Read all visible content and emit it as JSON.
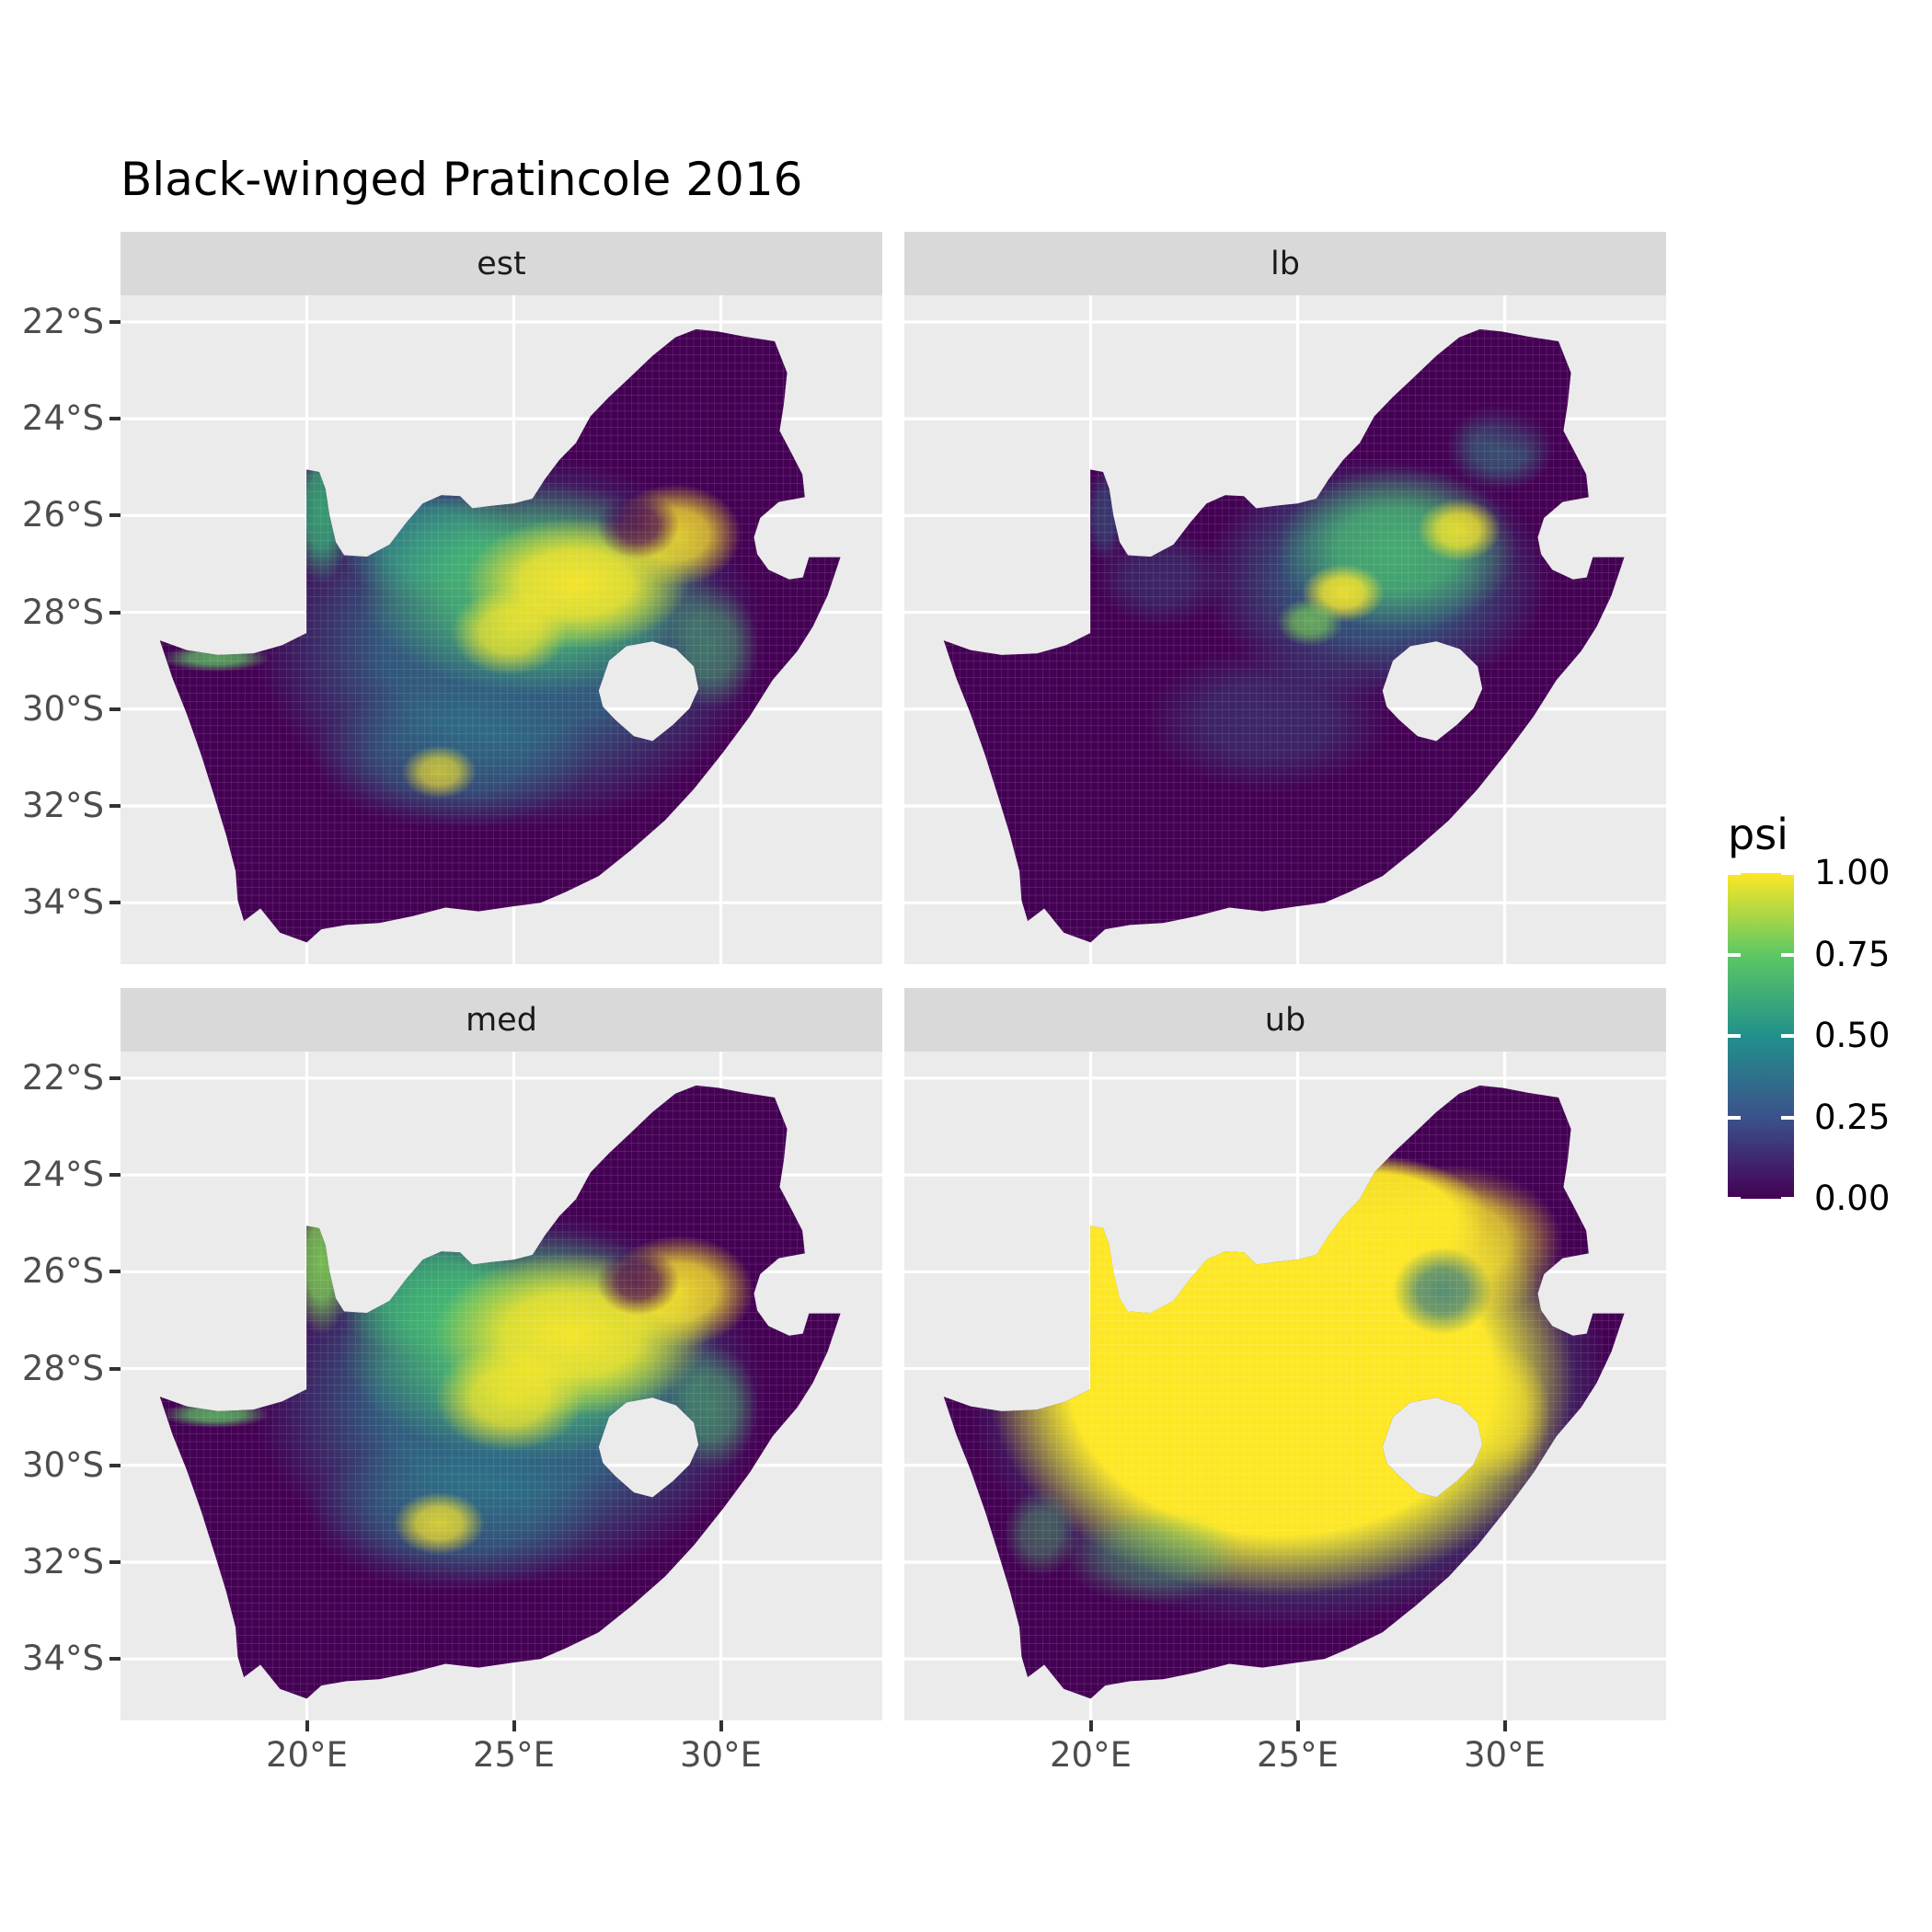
{
  "title": "Black-winged Pratincole 2016",
  "colors": {
    "panel_background": "#ebebeb",
    "strip_background": "#d9d9d9",
    "grid_line": "#ffffff",
    "axis_text": "#4d4d4d",
    "tick_mark": "#333333",
    "title_text": "#000000",
    "na_country_fill": "#440154",
    "figure_background": "#ffffff"
  },
  "chart_data": {
    "type": "heatmap",
    "title": "Black-winged Pratincole 2016",
    "subtitle": "",
    "region": "South Africa occupancy probability raster, 4 facets",
    "facet_variable_values": [
      "est",
      "lb",
      "med",
      "ub"
    ],
    "x_axis": {
      "label": "",
      "tick_labels": [
        "20°E",
        "25°E",
        "30°E"
      ],
      "tick_values": [
        20,
        25,
        30
      ],
      "range_lon": [
        15.5,
        33.9
      ]
    },
    "y_axis": {
      "label": "",
      "tick_labels": [
        "22°S",
        "24°S",
        "26°S",
        "28°S",
        "30°S",
        "32°S",
        "34°S"
      ],
      "tick_values": [
        22,
        24,
        26,
        28,
        30,
        32,
        34
      ],
      "range_lat_south": [
        21.45,
        35.27
      ]
    },
    "grid": {
      "x": [
        20,
        25,
        30
      ],
      "y": [
        22,
        24,
        26,
        28,
        30,
        32,
        34
      ],
      "grid_on": true
    },
    "legend": {
      "title": "psi",
      "position": "right",
      "tick_labels": [
        "1.00",
        "0.75",
        "0.50",
        "0.25",
        "0.00"
      ],
      "breaks": [
        1.0,
        0.75,
        0.5,
        0.25,
        0.0
      ],
      "palette": "viridis",
      "stops": {
        "0.00": "#440154",
        "0.25": "#3b528b",
        "0.50": "#21908c",
        "0.75": "#5dc863",
        "1.00": "#fde725"
      }
    },
    "geo": {
      "lon0": 15.5,
      "lonW": 18.4,
      "lat0": 21.45,
      "latH": 13.82
    },
    "facets": [
      {
        "label": "est",
        "summary": "Moderate-high psi (0.5-1.0) over central interior (Free State / North West / Northern Cape core); near 0 along west and south coasts and far northeast Limpopo.",
        "blobs": [
          [
            24.9,
            28.6,
            6.2,
            3.9,
            "#2a7f8e",
            0.8,
            0
          ],
          [
            22.9,
            26.5,
            2.2,
            1.3,
            "#2e9d8f",
            0.75,
            0
          ],
          [
            20.35,
            25.9,
            0.75,
            1.5,
            "#35b779",
            0.85,
            0
          ],
          [
            17.8,
            28.95,
            1.3,
            0.28,
            "#5ec962",
            0.8,
            0
          ],
          [
            25.6,
            27.5,
            4.3,
            2.2,
            "#4ac16d",
            0.85,
            0
          ],
          [
            26.5,
            27.4,
            2.7,
            1.35,
            "#fde725",
            0.95,
            0
          ],
          [
            28.9,
            26.4,
            1.6,
            1.05,
            "#fde725",
            0.85,
            0
          ],
          [
            24.9,
            28.4,
            1.4,
            0.9,
            "#fde725",
            0.8,
            0
          ],
          [
            23.5,
            31.0,
            3.4,
            1.5,
            "#2a7f8e",
            0.5,
            0
          ],
          [
            23.2,
            31.3,
            0.9,
            0.55,
            "#fde725",
            0.7,
            0
          ],
          [
            29.8,
            28.7,
            1.1,
            1.3,
            "#4ac16d",
            0.5,
            0
          ],
          [
            28.0,
            26.2,
            1.0,
            0.7,
            "#440154",
            0.8,
            0
          ],
          [
            30.9,
            23.3,
            2.6,
            1.8,
            "#440154",
            0.85,
            0
          ]
        ]
      },
      {
        "label": "lb",
        "summary": "Lower bound: mostly near 0 (dark purple); moderate psi (0.4-0.8) band across the northern interior with small yellow patches near 26-29E, 26-28S.",
        "blobs": [
          [
            26.9,
            27.3,
            4.2,
            2.5,
            "#2a7f8e",
            0.7,
            0
          ],
          [
            27.4,
            26.7,
            2.9,
            1.7,
            "#4ac16d",
            0.8,
            0
          ],
          [
            26.1,
            27.6,
            1.0,
            0.6,
            "#fde725",
            0.9,
            0
          ],
          [
            28.9,
            26.3,
            1.0,
            0.65,
            "#fde725",
            0.85,
            0
          ],
          [
            25.3,
            28.2,
            0.8,
            0.5,
            "#7ad151",
            0.7,
            0
          ],
          [
            24.3,
            30.2,
            3.0,
            1.5,
            "#2a7f8e",
            0.32,
            0
          ],
          [
            21.7,
            27.3,
            1.6,
            1.0,
            "#2a7f8e",
            0.3,
            0
          ],
          [
            20.35,
            26.0,
            0.5,
            1.0,
            "#2a7f8e",
            0.45,
            0
          ],
          [
            29.9,
            24.6,
            1.3,
            0.9,
            "#2e9d8f",
            0.5,
            0
          ],
          [
            30.9,
            23.2,
            2.4,
            1.6,
            "#440154",
            0.8,
            0
          ]
        ]
      },
      {
        "label": "med",
        "summary": "Median: like est but brighter; broad yellow (psi near 1) core across the central plateau, dark coasts and far northeast.",
        "blobs": [
          [
            24.9,
            28.6,
            6.2,
            3.9,
            "#2a7f8e",
            0.85,
            0
          ],
          [
            22.9,
            26.4,
            2.3,
            1.4,
            "#35b779",
            0.8,
            0
          ],
          [
            20.35,
            25.8,
            0.75,
            1.5,
            "#7ad151",
            0.9,
            0
          ],
          [
            17.8,
            28.95,
            1.3,
            0.28,
            "#5ec962",
            0.8,
            0
          ],
          [
            25.4,
            27.5,
            4.6,
            2.4,
            "#4ac16d",
            0.9,
            0
          ],
          [
            26.4,
            27.3,
            3.3,
            1.7,
            "#fde725",
            0.95,
            0
          ],
          [
            29.0,
            26.4,
            1.8,
            1.15,
            "#fde725",
            0.9,
            0
          ],
          [
            24.9,
            28.6,
            1.8,
            1.1,
            "#fde725",
            0.85,
            0
          ],
          [
            23.6,
            31.0,
            3.6,
            1.6,
            "#2a7f8e",
            0.55,
            0
          ],
          [
            23.2,
            31.2,
            1.1,
            0.65,
            "#fde725",
            0.8,
            0
          ],
          [
            29.8,
            28.8,
            1.1,
            1.3,
            "#4ac16d",
            0.55,
            0
          ],
          [
            28.0,
            26.2,
            1.0,
            0.7,
            "#440154",
            0.8,
            0
          ],
          [
            30.9,
            23.3,
            2.6,
            1.8,
            "#440154",
            0.85,
            0
          ]
        ]
      },
      {
        "label": "ub",
        "summary": "Upper bound: psi near 1 (yellow) over almost the whole interior plateau; near 0 only on west, south and east coastal belts and part of far northeast.",
        "blobs": [
          [
            24.8,
            28.4,
            7.8,
            5.0,
            "#2a9d8f",
            0.9,
            0
          ],
          [
            24.6,
            28.2,
            7.1,
            4.5,
            "#fde725",
            1,
            1
          ],
          [
            20.35,
            25.8,
            0.8,
            1.6,
            "#fde725",
            1,
            1
          ],
          [
            22.4,
            26.3,
            2.4,
            1.3,
            "#fde725",
            1,
            1
          ],
          [
            26.8,
            24.9,
            2.8,
            1.3,
            "#fde725",
            0.95,
            1
          ],
          [
            28.8,
            25.4,
            2.6,
            1.6,
            "#fde725",
            0.9,
            0
          ],
          [
            29.9,
            28.9,
            1.2,
            1.4,
            "#fde725",
            0.7,
            0
          ],
          [
            21.5,
            31.9,
            2.2,
            1.0,
            "#4ac16d",
            0.4,
            0
          ],
          [
            18.8,
            31.4,
            0.9,
            0.9,
            "#4ac16d",
            0.45,
            0
          ],
          [
            28.5,
            26.4,
            1.2,
            0.9,
            "#1f6e8c",
            0.75,
            0
          ],
          [
            31.0,
            23.1,
            2.6,
            1.7,
            "#440154",
            0.9,
            0
          ]
        ]
      }
    ]
  },
  "map": {
    "country": "South Africa",
    "holes": [
      "Lesotho",
      "Eswatini notch"
    ],
    "outline": [
      [
        16.45,
        28.58
      ],
      [
        17.1,
        28.78
      ],
      [
        17.85,
        28.88
      ],
      [
        18.7,
        28.85
      ],
      [
        19.4,
        28.68
      ],
      [
        19.99,
        28.43
      ],
      [
        19.99,
        25.05
      ],
      [
        20.3,
        25.1
      ],
      [
        20.45,
        25.45
      ],
      [
        20.55,
        26.0
      ],
      [
        20.7,
        26.55
      ],
      [
        20.9,
        26.82
      ],
      [
        21.45,
        26.85
      ],
      [
        22.0,
        26.6
      ],
      [
        22.4,
        26.15
      ],
      [
        22.8,
        25.75
      ],
      [
        23.25,
        25.58
      ],
      [
        23.7,
        25.6
      ],
      [
        24.0,
        25.85
      ],
      [
        24.45,
        25.8
      ],
      [
        25.0,
        25.75
      ],
      [
        25.45,
        25.65
      ],
      [
        25.75,
        25.25
      ],
      [
        26.1,
        24.85
      ],
      [
        26.5,
        24.5
      ],
      [
        26.85,
        23.95
      ],
      [
        27.3,
        23.55
      ],
      [
        27.8,
        23.15
      ],
      [
        28.35,
        22.7
      ],
      [
        28.9,
        22.32
      ],
      [
        29.4,
        22.15
      ],
      [
        29.95,
        22.2
      ],
      [
        30.55,
        22.3
      ],
      [
        31.3,
        22.4
      ],
      [
        31.6,
        23.05
      ],
      [
        31.52,
        23.7
      ],
      [
        31.42,
        24.25
      ],
      [
        31.7,
        24.7
      ],
      [
        31.97,
        25.15
      ],
      [
        32.03,
        25.62
      ],
      [
        31.4,
        25.72
      ],
      [
        30.95,
        26.05
      ],
      [
        30.8,
        26.45
      ],
      [
        30.88,
        26.8
      ],
      [
        31.15,
        27.12
      ],
      [
        31.65,
        27.32
      ],
      [
        31.98,
        27.28
      ],
      [
        32.13,
        26.86
      ],
      [
        32.89,
        26.86
      ],
      [
        32.58,
        27.65
      ],
      [
        32.22,
        28.3
      ],
      [
        31.85,
        28.8
      ],
      [
        31.25,
        29.4
      ],
      [
        30.7,
        30.15
      ],
      [
        30.05,
        30.9
      ],
      [
        29.35,
        31.65
      ],
      [
        28.65,
        32.3
      ],
      [
        27.85,
        32.9
      ],
      [
        27.05,
        33.45
      ],
      [
        26.25,
        33.78
      ],
      [
        25.65,
        34.0
      ],
      [
        24.95,
        34.08
      ],
      [
        24.15,
        34.18
      ],
      [
        23.35,
        34.1
      ],
      [
        22.55,
        34.28
      ],
      [
        21.75,
        34.42
      ],
      [
        20.95,
        34.46
      ],
      [
        20.35,
        34.55
      ],
      [
        20.0,
        34.82
      ],
      [
        19.35,
        34.62
      ],
      [
        18.88,
        34.12
      ],
      [
        18.48,
        34.38
      ],
      [
        18.33,
        33.95
      ],
      [
        18.28,
        33.35
      ],
      [
        18.05,
        32.6
      ],
      [
        17.8,
        31.9
      ],
      [
        17.45,
        30.95
      ],
      [
        17.1,
        30.1
      ],
      [
        16.75,
        29.35
      ]
    ],
    "lesotho": [
      [
        27.05,
        29.62
      ],
      [
        27.3,
        29.0
      ],
      [
        27.72,
        28.7
      ],
      [
        28.35,
        28.6
      ],
      [
        28.92,
        28.76
      ],
      [
        29.35,
        29.12
      ],
      [
        29.46,
        29.58
      ],
      [
        29.25,
        29.98
      ],
      [
        28.85,
        30.32
      ],
      [
        28.35,
        30.66
      ],
      [
        27.9,
        30.56
      ],
      [
        27.45,
        30.22
      ],
      [
        27.15,
        29.95
      ]
    ]
  }
}
